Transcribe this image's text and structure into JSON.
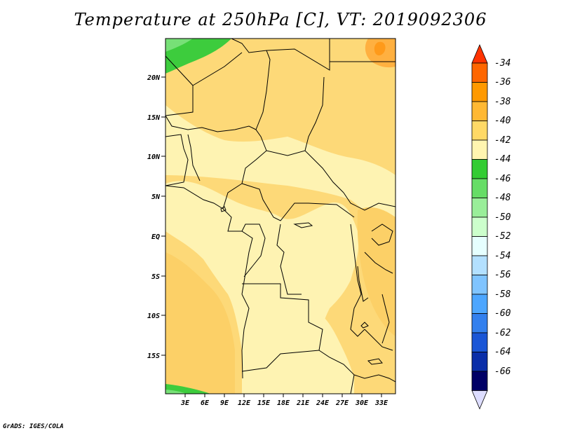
{
  "title": "Temperature at 250hPa [C], VT: 2019092306",
  "footer": "GrADS: IGES/COLA",
  "map": {
    "lat_labels": [
      "20N",
      "15N",
      "10N",
      "5N",
      "EQ",
      "5S",
      "10S",
      "15S"
    ],
    "lon_labels": [
      "3E",
      "6E",
      "9E",
      "12E",
      "15E",
      "18E",
      "21E",
      "24E",
      "27E",
      "30E",
      "33E"
    ]
  },
  "colorbar": {
    "labels": [
      "-34",
      "-36",
      "-38",
      "-40",
      "-42",
      "-44",
      "-46",
      "-48",
      "-50",
      "-52",
      "-54",
      "-56",
      "-58",
      "-60",
      "-62",
      "-64",
      "-66"
    ],
    "colors": [
      "#ff3300",
      "#ff6600",
      "#ff9900",
      "#ffb833",
      "#ffd966",
      "#fff5b0",
      "#33cc33",
      "#66dd66",
      "#99ee99",
      "#ccffcc",
      "#e6ffff",
      "#b3e0ff",
      "#80c4ff",
      "#4da6ff",
      "#3380ee",
      "#1a56d6",
      "#0a2ea8",
      "#000066",
      "#ddddff"
    ]
  }
}
